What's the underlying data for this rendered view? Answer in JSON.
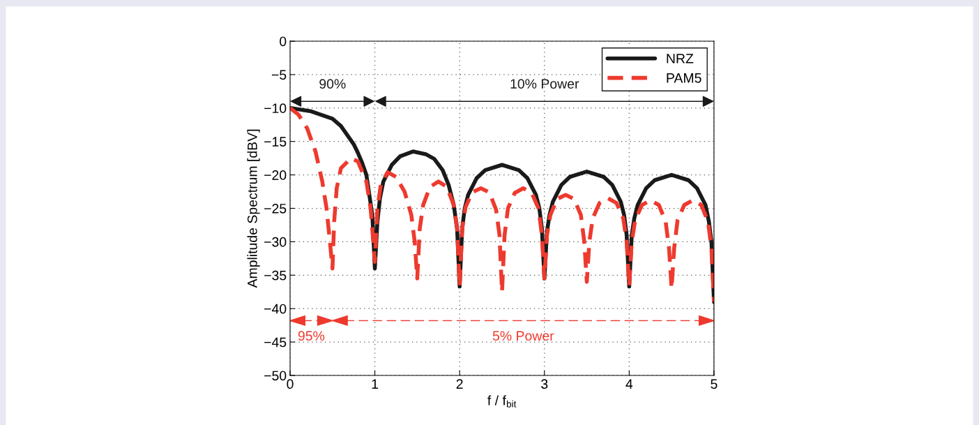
{
  "chart_data": {
    "type": "line",
    "xlabel": "f / f$_{bit}$",
    "ylabel": "Amplitude Spectrum [dBV]",
    "xlim": [
      0,
      5
    ],
    "xticks": [
      0,
      1,
      2,
      3,
      4,
      5
    ],
    "ylim": [
      -50,
      0
    ],
    "yticks": [
      -50,
      -45,
      -40,
      -35,
      -30,
      -25,
      -20,
      -15,
      -10,
      -5,
      0
    ],
    "grid": true,
    "legend": "top right",
    "series": [
      {
        "name": "NRZ",
        "color": "#1a1a1a",
        "line_style": "solid",
        "x": [
          0,
          0.25,
          0.5,
          0.6,
          0.75,
          0.8,
          0.85,
          0.9,
          0.97,
          1.0,
          1.03,
          1.06,
          1.1,
          1.2,
          1.3,
          1.45,
          1.6,
          1.7,
          1.8,
          1.87,
          1.93,
          1.97,
          2.0,
          2.03,
          2.06,
          2.1,
          2.2,
          2.3,
          2.5,
          2.7,
          2.8,
          2.9,
          2.94,
          2.97,
          3.0,
          3.03,
          3.06,
          3.1,
          3.2,
          3.3,
          3.5,
          3.7,
          3.8,
          3.9,
          3.94,
          3.97,
          4.0,
          4.03,
          4.06,
          4.1,
          4.2,
          4.3,
          4.5,
          4.7,
          4.8,
          4.9,
          4.94,
          4.97,
          5.0
        ],
        "values": [
          -10,
          -10.5,
          -11.6,
          -12.7,
          -15.4,
          -16.7,
          -18.2,
          -20,
          -26,
          -34,
          -27,
          -23.5,
          -21,
          -18.5,
          -17.2,
          -16.5,
          -16.9,
          -17.6,
          -19.3,
          -21.5,
          -24.5,
          -28,
          -36.7,
          -28,
          -25,
          -23,
          -20.5,
          -19.3,
          -18.5,
          -19.3,
          -20.5,
          -23,
          -25,
          -28,
          -35.5,
          -28.5,
          -26,
          -24,
          -21.5,
          -20.3,
          -19.5,
          -20.3,
          -21.5,
          -24,
          -26,
          -29,
          -36.7,
          -29,
          -26.5,
          -24.5,
          -22,
          -20.8,
          -20,
          -20.8,
          -22,
          -24.5,
          -27,
          -30,
          -39
        ]
      },
      {
        "name": "PAM5",
        "color": "#ee3a2e",
        "line_style": "dashed",
        "x": [
          0,
          0.1,
          0.2,
          0.3,
          0.38,
          0.43,
          0.47,
          0.5,
          0.52,
          0.55,
          0.6,
          0.72,
          0.8,
          0.9,
          0.95,
          1.0,
          1.03,
          1.07,
          1.15,
          1.25,
          1.35,
          1.43,
          1.47,
          1.5,
          1.53,
          1.57,
          1.65,
          1.75,
          1.85,
          1.93,
          1.97,
          2.0,
          2.03,
          2.07,
          2.15,
          2.25,
          2.35,
          2.43,
          2.47,
          2.5,
          2.53,
          2.57,
          2.65,
          2.75,
          2.85,
          2.93,
          2.97,
          3.0,
          3.03,
          3.07,
          3.15,
          3.25,
          3.35,
          3.43,
          3.47,
          3.5,
          3.53,
          3.57,
          3.65,
          3.75,
          3.85,
          3.93,
          3.97,
          4.0,
          4.03,
          4.07,
          4.15,
          4.25,
          4.35,
          4.43,
          4.47,
          4.5,
          4.53,
          4.57,
          4.65,
          4.75,
          4.85,
          4.93,
          4.97,
          5.0
        ],
        "values": [
          -10,
          -11,
          -13,
          -16.5,
          -21,
          -25,
          -30,
          -34,
          -27,
          -22,
          -19,
          -17.5,
          -18,
          -21,
          -25,
          -33,
          -25,
          -21.5,
          -19.6,
          -20.3,
          -22.5,
          -26,
          -30,
          -35.5,
          -28,
          -24.5,
          -21.8,
          -21,
          -21.8,
          -24.5,
          -28,
          -36.7,
          -28,
          -24.8,
          -22.6,
          -22,
          -22.6,
          -25.2,
          -29,
          -37.5,
          -29,
          -25,
          -22.7,
          -22,
          -22.7,
          -25,
          -29,
          -35.5,
          -29,
          -26,
          -23.6,
          -23,
          -23.6,
          -26,
          -30,
          -36,
          -30,
          -26.5,
          -24.2,
          -23.5,
          -24.2,
          -26.5,
          -30,
          -36.7,
          -30,
          -26.8,
          -24.5,
          -23.8,
          -24.5,
          -27,
          -31,
          -37,
          -31,
          -26.8,
          -24.5,
          -23.8,
          -24.5,
          -27,
          -31,
          -39
        ]
      }
    ],
    "annotations": [
      "90%",
      "10% Power",
      "95%",
      "5% Power"
    ]
  }
}
